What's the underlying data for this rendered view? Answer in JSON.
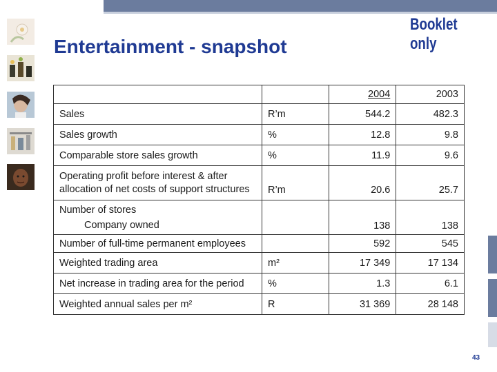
{
  "header": {
    "title": "Entertainment - snapshot",
    "stamp": "Booklet only"
  },
  "table": {
    "years": [
      "2004",
      "2003"
    ],
    "rows": [
      {
        "label": "Sales",
        "unit": "R’m",
        "v2004": "544.2",
        "v2003": "482.3"
      },
      {
        "label": "Sales growth",
        "unit": "%",
        "v2004": "12.8",
        "v2003": "9.8"
      },
      {
        "label": "Comparable store sales growth",
        "unit": "%",
        "v2004": "11.9",
        "v2003": "9.6"
      },
      {
        "label_line1": "Operating profit before interest & after",
        "label_line2": "allocation of net costs of support structures",
        "unit": "R’m",
        "v2004": "20.6",
        "v2003": "25.7"
      },
      {
        "label_line1": "Number of stores",
        "label_line2": "Company owned",
        "unit": "",
        "v2004": "138",
        "v2003": "138"
      },
      {
        "label": "Number of full-time permanent employees",
        "unit": "",
        "v2004": "592",
        "v2003": "545"
      },
      {
        "label": "Weighted trading area",
        "unit": "m²",
        "v2004": "17 349",
        "v2003": "17 134"
      },
      {
        "label": "Net increase in trading area for the period",
        "unit": "%",
        "v2004": "1.3",
        "v2003": "6.1"
      },
      {
        "label": "Weighted annual sales per m²",
        "unit": "R",
        "v2004": "31 369",
        "v2003": "28 148"
      }
    ]
  },
  "footer": {
    "page_number": "43"
  },
  "colors": {
    "title": "#1f3a93",
    "bar": "#6b7c9e"
  }
}
